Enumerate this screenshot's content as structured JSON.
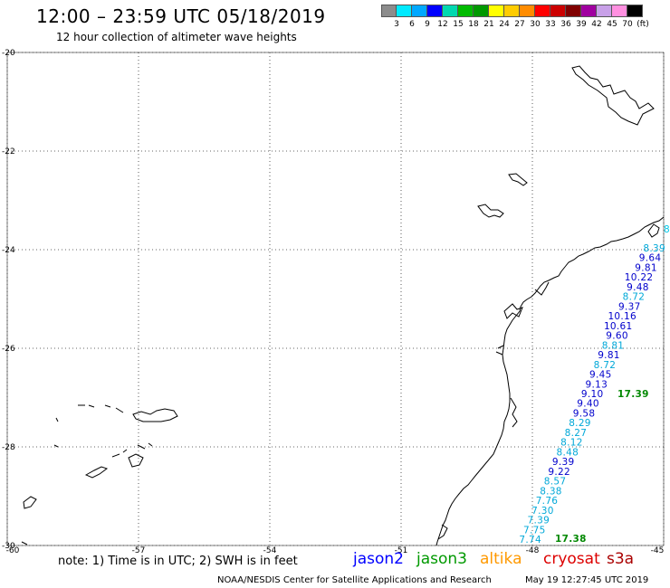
{
  "title": "12:00 – 23:59 UTC 05/18/2019",
  "subtitle": "12 hour collection of altimeter wave heights",
  "legend": {
    "unit": "(ft)",
    "colors": [
      "#8c8c8c",
      "#00eaff",
      "#00a8ff",
      "#0000ff",
      "#00d8b0",
      "#00bb00",
      "#009900",
      "#ffff00",
      "#ffcc00",
      "#ff8c00",
      "#ff0000",
      "#cc0000",
      "#800000",
      "#a000a0",
      "#c8a0e8",
      "#ff90e0",
      "#000000"
    ],
    "ticks": [
      "3",
      "6",
      "9",
      "12",
      "15",
      "18",
      "21",
      "24",
      "27",
      "30",
      "33",
      "36",
      "39",
      "42",
      "45",
      "70"
    ]
  },
  "map": {
    "lon_range": [
      -60,
      -45
    ],
    "lat_range": [
      -30,
      -20
    ],
    "x_ticks": [
      "-60",
      "-57",
      "-54",
      "-51",
      "-48",
      "-45"
    ],
    "y_ticks": [
      "-20",
      "-22",
      "-24",
      "-26",
      "-28",
      "-30"
    ],
    "grid": "dotted"
  },
  "observations": [
    {
      "text": "8.39",
      "color": "#00a8d8"
    },
    {
      "text": "9.64",
      "color": "#0000cc"
    },
    {
      "text": "9.81",
      "color": "#0000cc"
    },
    {
      "text": "10.22",
      "color": "#0000cc"
    },
    {
      "text": "9.48",
      "color": "#0000cc"
    },
    {
      "text": "8.72",
      "color": "#00a8d8"
    },
    {
      "text": "9.37",
      "color": "#0000cc"
    },
    {
      "text": "10.16",
      "color": "#0000cc"
    },
    {
      "text": "10.61",
      "color": "#0000cc"
    },
    {
      "text": "9.60",
      "color": "#0000cc"
    },
    {
      "text": "8.81",
      "color": "#00a8d8"
    },
    {
      "text": "9.81",
      "color": "#0000cc"
    },
    {
      "text": "8.72",
      "color": "#00a8d8"
    },
    {
      "text": "9.45",
      "color": "#0000cc"
    },
    {
      "text": "9.13",
      "color": "#0000cc"
    },
    {
      "text": "9.10",
      "color": "#0000cc"
    },
    {
      "text": "9.40",
      "color": "#0000cc"
    },
    {
      "text": "9.58",
      "color": "#0000cc"
    },
    {
      "text": "8.29",
      "color": "#00a8d8"
    },
    {
      "text": "8.27",
      "color": "#00a8d8"
    },
    {
      "text": "8.12",
      "color": "#00a8d8"
    },
    {
      "text": "8.48",
      "color": "#00a8d8"
    },
    {
      "text": "9.39",
      "color": "#0000cc"
    },
    {
      "text": "9.22",
      "color": "#0000cc"
    },
    {
      "text": "8.57",
      "color": "#00a8d8"
    },
    {
      "text": "8.38",
      "color": "#00a8d8"
    },
    {
      "text": "7.76",
      "color": "#00a8d8"
    },
    {
      "text": "7.30",
      "color": "#00a8d8"
    },
    {
      "text": "7.39",
      "color": "#00a8d8"
    },
    {
      "text": "7.75",
      "color": "#00a8d8"
    },
    {
      "text": "7.74",
      "color": "#00a8d8"
    }
  ],
  "observations_extra": [
    {
      "text": "17.39",
      "color": "#008800"
    },
    {
      "text": "17.38",
      "color": "#008800"
    },
    {
      "text": "8",
      "color": "#00c8e8"
    }
  ],
  "note": "note:  1) Time is in UTC;  2) SWH is in feet",
  "satellites": [
    {
      "name": "jason2",
      "color": "#0000ff"
    },
    {
      "name": "jason3",
      "color": "#009900"
    },
    {
      "name": "altika",
      "color": "#ff9900"
    },
    {
      "name": "cryosat",
      "color": "#dd0000"
    },
    {
      "name": "s3a",
      "color": "#aa0000"
    }
  ],
  "credit": "NOAA/NESDIS Center for Satellite Applications and Research",
  "timestamp": "May 19 12:27:45 UTC 2019"
}
